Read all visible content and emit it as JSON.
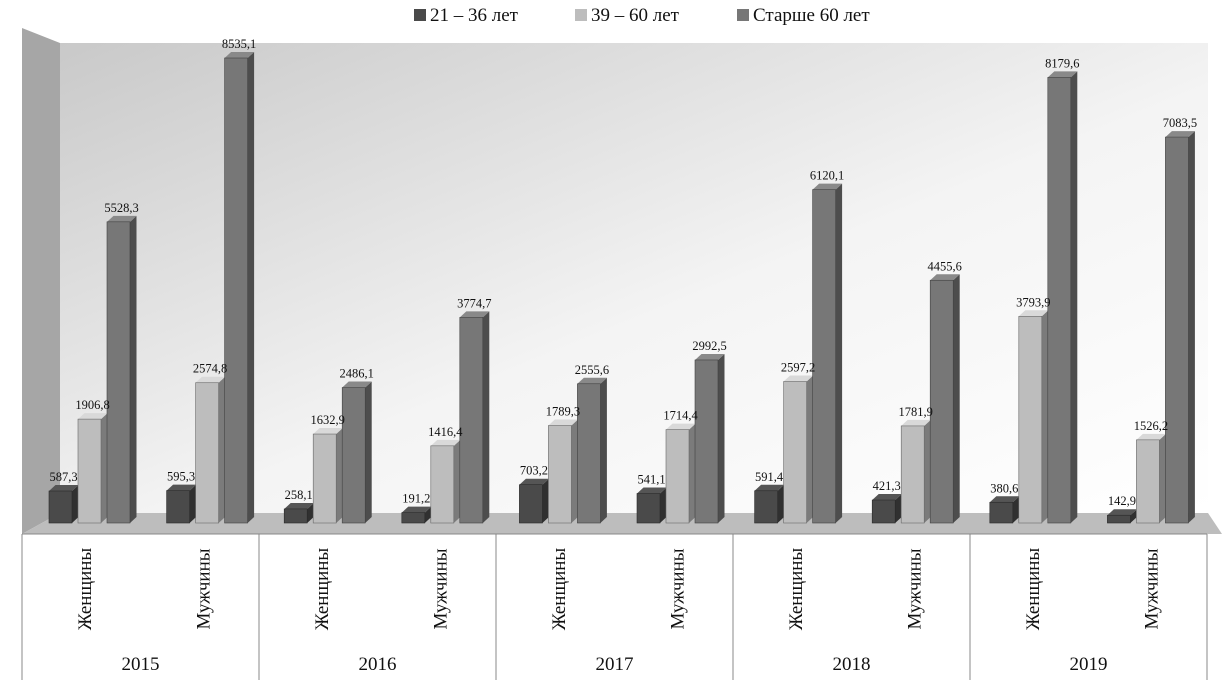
{
  "chart_data": {
    "type": "bar",
    "title": "",
    "xlabel": "",
    "ylabel": "",
    "ylim": [
      0,
      8600
    ],
    "grid": false,
    "legend_position": "top",
    "years": [
      "2015",
      "2016",
      "2017",
      "2018",
      "2019"
    ],
    "genders": [
      "Женщины",
      "Мужчины"
    ],
    "categories": [
      "2015 Женщины",
      "2015 Мужчины",
      "2016 Женщины",
      "2016 Мужчины",
      "2017 Женщины",
      "2017 Мужчины",
      "2018 Женщины",
      "2018 Мужчины",
      "2019 Женщины",
      "2019 Мужчины"
    ],
    "series": [
      {
        "name": "21 – 36 лет",
        "color": "#4a4a4a",
        "values": [
          587.3,
          595.3,
          258.1,
          191.2,
          703.2,
          541.1,
          591.4,
          421.3,
          380.6,
          142.9
        ],
        "labels": [
          "587,3",
          "595,3",
          "258,1",
          "191,2",
          "703,2",
          "541,1",
          "591,4",
          "421,3",
          "380,6",
          "142,9"
        ]
      },
      {
        "name": "39 – 60 лет",
        "color": "#bdbdbd",
        "values": [
          1906.8,
          2574.8,
          1632.9,
          1416.4,
          1789.3,
          1714.4,
          2597.2,
          1781.9,
          3793.9,
          1526.2
        ],
        "labels": [
          "1906,8",
          "2574,8",
          "1632,9",
          "1416,4",
          "1789,3",
          "1714,4",
          "2597,2",
          "1781,9",
          "3793,9",
          "1526,2"
        ]
      },
      {
        "name": "Старше 60 лет",
        "color": "#777777",
        "values": [
          5528.3,
          8535.1,
          2486.1,
          3774.7,
          2555.6,
          2992.5,
          6120.1,
          4455.6,
          8179.6,
          7083.5
        ],
        "labels": [
          "5528,3",
          "8535,1",
          "2486,1",
          "3774,7",
          "2555,6",
          "2992,5",
          "6120,1",
          "4455,6",
          "8179,6",
          "7083,5"
        ]
      }
    ]
  }
}
